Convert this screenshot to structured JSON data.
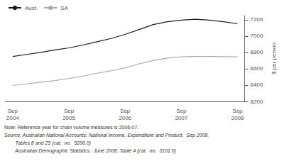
{
  "chart_data": {
    "type": "line",
    "ylabel": "$ per person",
    "categories": [
      "Sep\n2004",
      null,
      null,
      null,
      "Sep\n2005",
      null,
      null,
      null,
      "Sep\n2006",
      null,
      null,
      null,
      "Sep\n2007",
      null,
      null,
      null,
      "Sep\n2008"
    ],
    "series": [
      {
        "name": "Aust.",
        "color": "#1a1a1a",
        "values": [
          6750,
          6775,
          6800,
          6830,
          6855,
          6890,
          6930,
          6970,
          7020,
          7080,
          7140,
          7175,
          7195,
          7205,
          7195,
          7175,
          7150
        ]
      },
      {
        "name": "SA",
        "color": "#aaaaaa",
        "values": [
          6395,
          6415,
          6435,
          6455,
          6480,
          6510,
          6545,
          6575,
          6610,
          6660,
          6700,
          6730,
          6745,
          6750,
          6750,
          6748,
          6745
        ]
      }
    ],
    "ylim": [
      6200,
      7250
    ],
    "yticks": [
      6200,
      6400,
      6600,
      6800,
      7000,
      7200
    ],
    "grid": false,
    "legend": "upper left",
    "annotations": [
      "Note: Reference year for chain volume measures is 2006-07.",
      "Source: Australian National Accounts: National Income, Expenditure and Product,  Sep 2008,",
      "        Tables 8 and 25 (cat.  no.  5206.0)",
      "        Australian Demographic Statistics,  June 2008, Table 4 (cat.  no.  3101.0)"
    ]
  }
}
